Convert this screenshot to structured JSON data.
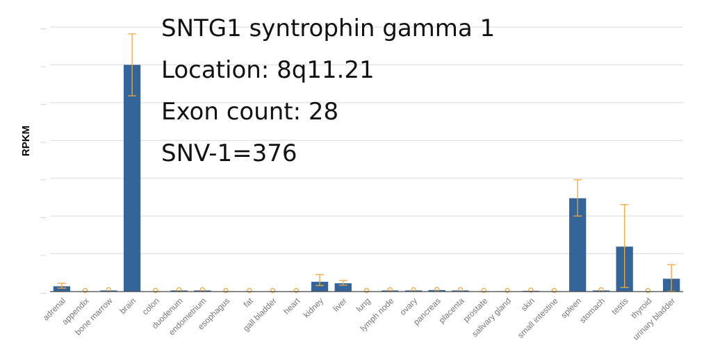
{
  "chart_data": {
    "type": "bar",
    "ylabel": "RPKM",
    "xlabel": "",
    "ylim": [
      0,
      7
    ],
    "yticks": [
      0,
      1,
      2,
      3,
      4,
      5,
      6,
      7
    ],
    "ytick_labels": [
      "...",
      "...",
      "...",
      "...",
      "...",
      "...",
      "...",
      "..."
    ],
    "grid": true,
    "bar_color": "#33659a",
    "error_color": "#f4a63a",
    "categories": [
      "adrenal",
      "appendix",
      "bone marrow",
      "brain",
      "colon",
      "duodenum",
      "endometrium",
      "esophagus",
      "fat",
      "gall bladder",
      "heart",
      "kidney",
      "liver",
      "lung",
      "lymph node",
      "ovary",
      "pancreas",
      "placenta",
      "prostate",
      "salivary gland",
      "skin",
      "small intestine",
      "spleen",
      "stomach",
      "testis",
      "thyroid",
      "urinary bladder"
    ],
    "values": [
      0.14,
      0.01,
      0.03,
      6.0,
      0.01,
      0.03,
      0.03,
      0.01,
      0.01,
      0.01,
      0.01,
      0.26,
      0.22,
      0.01,
      0.03,
      0.03,
      0.04,
      0.03,
      0.01,
      0.01,
      0.02,
      0.01,
      2.47,
      0.03,
      1.19,
      0.01,
      0.34
    ],
    "err_low": [
      0.09,
      0.01,
      0.0,
      5.18,
      0.01,
      0.0,
      0.0,
      0.01,
      0.01,
      0.01,
      0.01,
      0.16,
      0.17,
      0.01,
      0.01,
      0.01,
      0.02,
      0.01,
      0.01,
      0.01,
      0.01,
      0.01,
      2.0,
      0.02,
      0.11,
      0.01,
      0.01
    ],
    "err_high": [
      0.22,
      0.01,
      0.06,
      6.82,
      0.01,
      0.06,
      0.06,
      0.01,
      0.01,
      0.01,
      0.01,
      0.45,
      0.29,
      0.01,
      0.06,
      0.06,
      0.06,
      0.06,
      0.01,
      0.01,
      0.03,
      0.01,
      2.96,
      0.04,
      2.3,
      0.01,
      0.71
    ],
    "annotations": [
      "SNTG1 syntrophin gamma 1",
      "Location: 8q11.21",
      "Exon count: 28",
      "SNV-1=376"
    ]
  }
}
